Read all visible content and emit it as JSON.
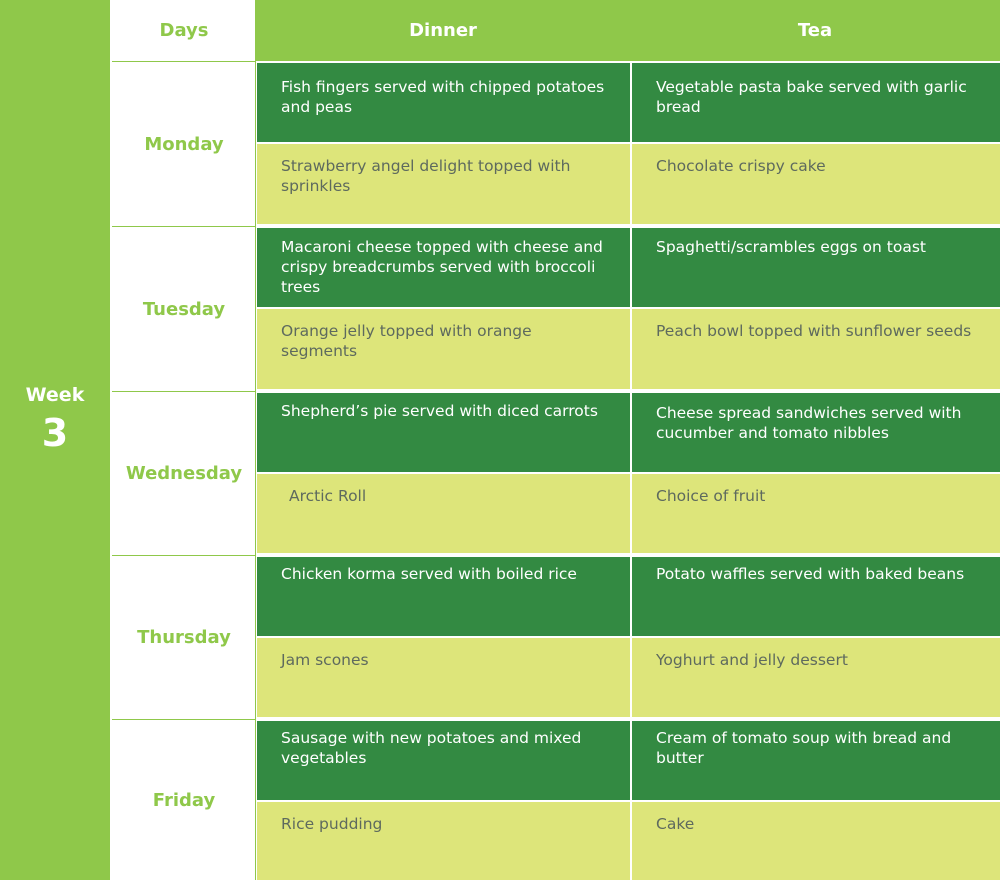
{
  "week": {
    "label": "Week",
    "number": "3"
  },
  "headers": {
    "days": "Days",
    "dinner": "Dinner",
    "tea": "Tea"
  },
  "colors": {
    "light_green": "#8fc84a",
    "dark_green": "#338a42",
    "pale_green": "#dde57a"
  },
  "days": [
    {
      "name": "Monday",
      "dinner_main": "Fish fingers served with chipped potatoes and peas",
      "tea_main": "Vegetable pasta bake served with garlic bread",
      "dinner_dessert": "Strawberry angel delight topped with sprinkles",
      "tea_dessert": "Chocolate crispy cake"
    },
    {
      "name": "Tuesday",
      "dinner_main": "Macaroni cheese topped with cheese and crispy breadcrumbs served with broccoli trees",
      "tea_main": "Spaghetti/scrambles eggs on toast",
      "dinner_dessert": "Orange jelly topped with orange segments",
      "tea_dessert": "Peach bowl topped with sunflower seeds"
    },
    {
      "name": "Wednesday",
      "dinner_main": "Shepherd’s pie served with diced carrots",
      "tea_main": "Cheese spread sandwiches served with cucumber and tomato nibbles",
      "dinner_dessert": "Arctic Roll",
      "tea_dessert": "Choice of fruit"
    },
    {
      "name": "Thursday",
      "dinner_main": "Chicken korma served with boiled rice",
      "tea_main": "Potato waffles served with baked beans",
      "dinner_dessert": "Jam scones",
      "tea_dessert": "Yoghurt and jelly dessert"
    },
    {
      "name": "Friday",
      "dinner_main": "Sausage with new potatoes and mixed vegetables",
      "tea_main": "Cream of tomato soup with bread and butter",
      "dinner_dessert": "Rice pudding",
      "tea_dessert": "Cake"
    }
  ]
}
